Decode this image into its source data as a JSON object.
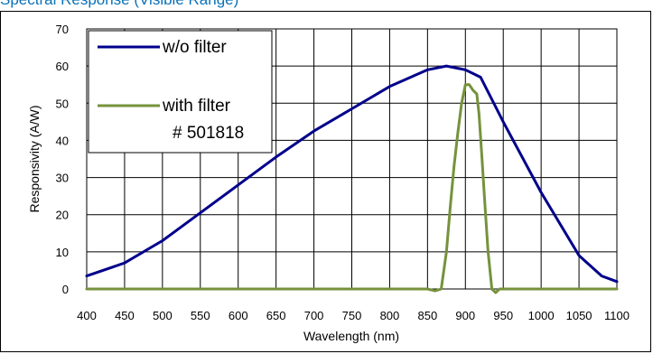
{
  "heading": "Spectral Response (Visible Range)",
  "chart_data": {
    "type": "line",
    "title": "",
    "xlabel": "Wavelength (nm)",
    "ylabel": "Responsivity (A/W)",
    "xlim": [
      400,
      1100
    ],
    "ylim": [
      0,
      70
    ],
    "x_ticks": [
      "400",
      "450",
      "500",
      "550",
      "600",
      "650",
      "700",
      "750",
      "800",
      "850",
      "900",
      "950",
      "1000",
      "1050",
      "1100"
    ],
    "y_ticks": [
      "0",
      "10",
      "20",
      "30",
      "40",
      "50",
      "60",
      "70"
    ],
    "grid": true,
    "legend_position": "top-left",
    "series": [
      {
        "name": "w/o filter",
        "color": "#00008b",
        "x": [
          400,
          450,
          500,
          550,
          600,
          650,
          700,
          750,
          800,
          850,
          875,
          900,
          920,
          950,
          1000,
          1050,
          1080,
          1100
        ],
        "y": [
          3.5,
          7,
          13,
          20.5,
          28,
          35.5,
          42.5,
          48.5,
          54.5,
          59,
          60,
          59,
          57,
          45,
          26,
          9,
          3.5,
          2
        ]
      },
      {
        "name": "with filter",
        "label_line2": "# 501818",
        "color": "#76923c",
        "x": [
          400,
          850,
          860,
          868,
          875,
          880,
          885,
          890,
          895,
          900,
          905,
          910,
          915,
          918,
          922,
          926,
          930,
          935,
          940,
          945,
          950,
          1100
        ],
        "y": [
          0,
          0,
          -0.5,
          0,
          10,
          22,
          33,
          42,
          50,
          55,
          55,
          53.5,
          52.5,
          47,
          35,
          22,
          10,
          0,
          -1,
          0,
          0,
          0
        ]
      }
    ]
  }
}
